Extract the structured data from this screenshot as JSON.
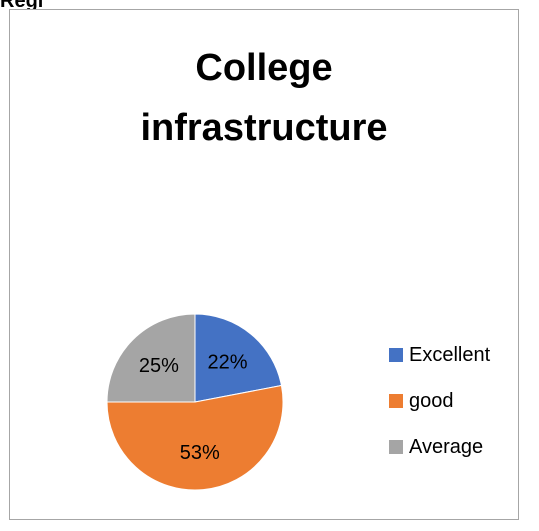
{
  "caption": "Regi",
  "chart_data": {
    "type": "pie",
    "title": "College infrastructure",
    "categories": [
      "Excellent",
      "good",
      "Average"
    ],
    "values": [
      22,
      53,
      25
    ],
    "labels": [
      "22%",
      "53%",
      "25%"
    ],
    "colors": [
      "#4472c4",
      "#ed7d31",
      "#a5a5a5"
    ],
    "legend_position": "right"
  }
}
